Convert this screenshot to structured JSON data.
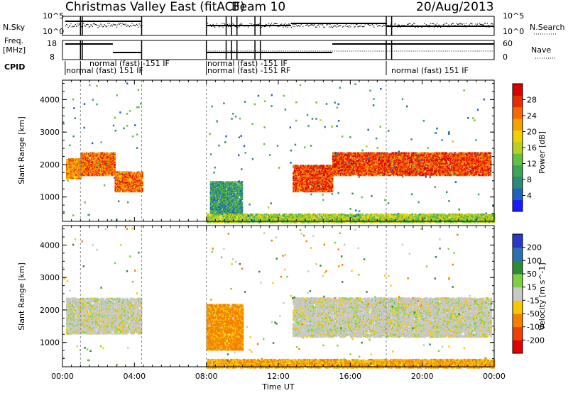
{
  "header": {
    "title": "Christmas Valley East (fitACF)",
    "beam": "Beam 10",
    "date": "20/Aug/2013"
  },
  "strip_labels": {
    "nsky": "N.Sky",
    "freq_line1": "Freq.",
    "freq_line2": "[MHz]",
    "cpid": "CPID",
    "nsearch": "N.Search",
    "nave": "Nave"
  },
  "strip_ticks": {
    "nsky_top": "10^5",
    "nsky_bottom": "10^0",
    "nsearch_top": "10^5",
    "nsearch_bottom": "10^0",
    "freq_top": "18",
    "freq_bottom": "8",
    "nave_top": "60",
    "nave_bottom": "0"
  },
  "cpid_labels": [
    "normal (fast) -151 IF",
    "normal (fast) 151 IF",
    "normal (fast) -151 IF",
    "normal (fast) -151 RF",
    "normal (fast) 151 IF"
  ],
  "chart_data": [
    {
      "type": "heatmap",
      "name": "power",
      "ylabel": "Slant Range [km]",
      "yticks": [
        "1000",
        "2000",
        "3000",
        "4000"
      ],
      "ylim": [
        250,
        4600
      ],
      "xlim": [
        0,
        24
      ],
      "colorbar_label": "Power [dB]",
      "colorbar_ticks": [
        "4",
        "8",
        "12",
        "16",
        "20",
        "24",
        "28"
      ],
      "colorbar_range": [
        0,
        30
      ],
      "colors": [
        "#1a1aff",
        "#2060c0",
        "#2e8a76",
        "#3ca55a",
        "#66c040",
        "#b8d020",
        "#f0d000",
        "#f7a000",
        "#f56a00",
        "#e82c00",
        "#d80000"
      ],
      "approx_echo_bands": [
        {
          "t0": 0.2,
          "t1": 1.0,
          "r0": 1600,
          "r1": 2200,
          "power": 22
        },
        {
          "t0": 1.0,
          "t1": 2.9,
          "r0": 1700,
          "r1": 2400,
          "power": 24
        },
        {
          "t0": 2.9,
          "t1": 4.4,
          "r0": 1200,
          "r1": 1800,
          "power": 24
        },
        {
          "t0": 8.2,
          "t1": 10.0,
          "r0": 500,
          "r1": 1500,
          "power": 8
        },
        {
          "t0": 12.8,
          "t1": 15.0,
          "r0": 1200,
          "r1": 2000,
          "power": 26
        },
        {
          "t0": 15.0,
          "t1": 23.8,
          "r0": 1700,
          "r1": 2400,
          "power": 26
        },
        {
          "t0": 8.0,
          "t1": 24.0,
          "r0": 250,
          "r1": 500,
          "power": 14
        }
      ]
    },
    {
      "type": "heatmap",
      "name": "velocity",
      "ylabel": "Slant Range [km]",
      "xlabel": "Time UT",
      "yticks": [
        "1000",
        "2000",
        "3000",
        "4000"
      ],
      "ylim": [
        250,
        4600
      ],
      "xticks": [
        "00:00",
        "04:00",
        "08:00",
        "12:00",
        "16:00",
        "20:00",
        "00:00"
      ],
      "xlim": [
        0,
        24
      ],
      "colorbar_label": "Velocity [m s^-1]",
      "colorbar_ticks": [
        "200",
        "100",
        "50",
        "15",
        "-15",
        "-50",
        "-100",
        "-200"
      ],
      "colors": [
        "#2838c8",
        "#2c70b0",
        "#2b8c33",
        "#7ed040",
        "#c8c8c8",
        "#f7c800",
        "#f58000",
        "#f04000",
        "#e00000"
      ],
      "approx_echo_bands": [
        {
          "t0": 0.2,
          "t1": 4.4,
          "r0": 1300,
          "r1": 2400,
          "velocity": 0
        },
        {
          "t0": 8.0,
          "t1": 10.0,
          "r0": 800,
          "r1": 2200,
          "velocity": -60
        },
        {
          "t0": 12.8,
          "t1": 23.8,
          "r0": 1200,
          "r1": 2400,
          "velocity": 0
        },
        {
          "t0": 8.0,
          "t1": 24.0,
          "r0": 250,
          "r1": 500,
          "velocity": -50
        }
      ]
    }
  ]
}
